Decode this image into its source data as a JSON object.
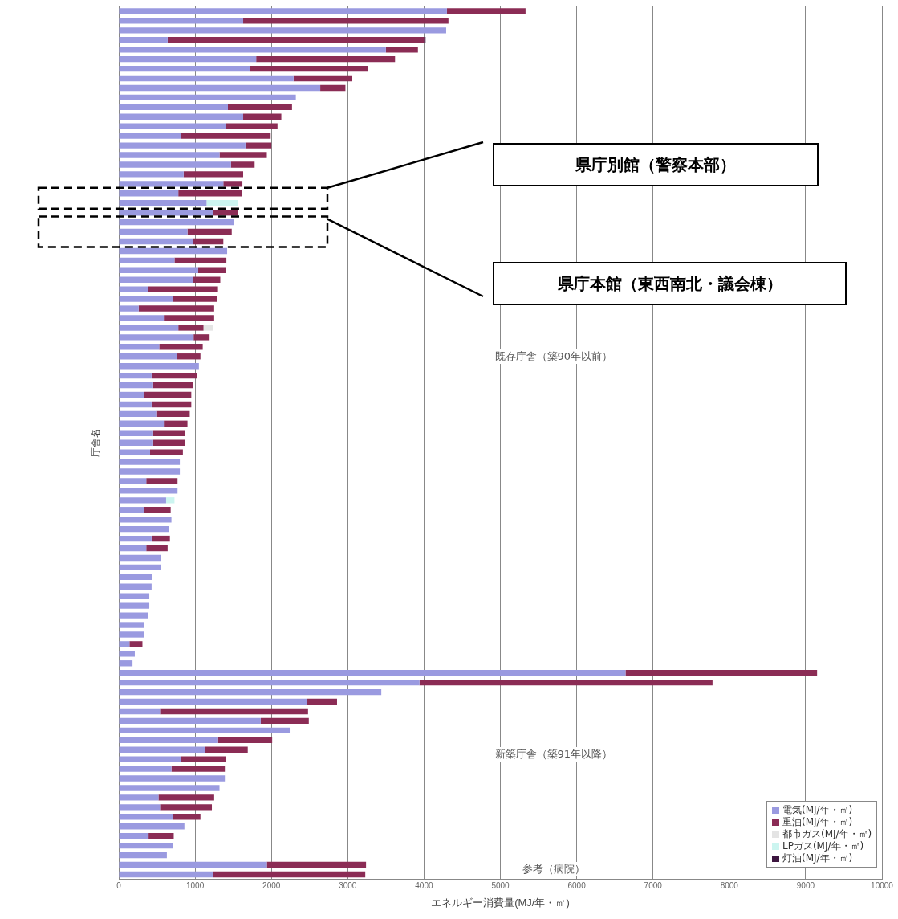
{
  "chart_data": {
    "type": "bar",
    "orientation": "horizontal",
    "stacked": true,
    "xlabel": "エネルギー消費量(MJ/年・㎡)",
    "ylabel": "庁舎名",
    "categories": [
      null,
      null,
      null,
      null,
      null,
      null,
      null,
      null,
      null,
      null,
      null,
      null,
      null,
      null,
      null,
      null,
      null,
      null,
      null,
      null,
      null,
      null,
      null,
      null,
      null,
      null,
      null,
      null,
      null,
      null,
      null,
      null,
      null,
      null,
      null,
      null,
      null,
      null,
      null,
      null,
      null,
      null,
      null,
      null,
      null,
      null,
      null,
      null,
      null,
      null,
      null,
      null,
      null,
      null,
      null,
      null,
      null,
      null,
      null,
      null,
      null,
      null,
      null,
      null,
      null,
      null,
      null,
      null,
      null,
      null,
      null,
      null,
      null,
      null,
      null,
      null,
      null,
      null,
      null,
      null,
      null,
      null,
      null,
      null,
      null,
      null,
      null,
      null,
      null,
      null,
      null
    ],
    "series": [
      {
        "name": "電気(MJ/年・㎡)",
        "color": "#9a9ae0",
        "values": [
          4300,
          1630,
          4290,
          640,
          3500,
          1800,
          1720,
          2290,
          2640,
          2320,
          1430,
          1630,
          1400,
          820,
          1660,
          1320,
          1470,
          850,
          1370,
          780,
          1150,
          1240,
          1510,
          900,
          970,
          1420,
          730,
          1040,
          970,
          380,
          710,
          260,
          590,
          780,
          980,
          530,
          760,
          1050,
          430,
          450,
          330,
          430,
          500,
          590,
          450,
          450,
          410,
          800,
          800,
          360,
          770,
          620,
          330,
          690,
          660,
          430,
          360,
          550,
          550,
          440,
          430,
          400,
          400,
          380,
          330,
          330,
          140,
          210,
          180,
          6640,
          3940,
          3440,
          2470,
          540,
          1860,
          2240,
          1300,
          1130,
          810,
          690,
          1390,
          1320,
          520,
          540,
          710,
          860,
          390,
          710,
          630,
          1940,
          1230
        ]
      },
      {
        "name": "重油(MJ/年・㎡)",
        "color": "#8b2c55",
        "values": [
          1030,
          2690,
          null,
          3360,
          420,
          1820,
          1540,
          770,
          330,
          null,
          840,
          500,
          680,
          1170,
          340,
          620,
          310,
          780,
          250,
          830,
          null,
          320,
          null,
          580,
          400,
          null,
          680,
          360,
          360,
          920,
          580,
          990,
          660,
          330,
          210,
          570,
          310,
          null,
          590,
          520,
          620,
          520,
          430,
          310,
          420,
          420,
          430,
          null,
          null,
          410,
          null,
          null,
          350,
          null,
          null,
          240,
          280,
          null,
          null,
          null,
          null,
          null,
          null,
          null,
          null,
          null,
          170,
          null,
          null,
          2510,
          3840,
          null,
          390,
          1940,
          630,
          null,
          710,
          560,
          590,
          700,
          null,
          null,
          730,
          680,
          360,
          null,
          330,
          null,
          null,
          1300,
          2000
        ]
      },
      {
        "name": "都市ガス(MJ/年・㎡)",
        "color": "#e4e4e4",
        "values": [
          null,
          null,
          null,
          null,
          null,
          null,
          null,
          null,
          null,
          null,
          null,
          null,
          null,
          null,
          null,
          null,
          null,
          null,
          null,
          null,
          null,
          null,
          null,
          null,
          null,
          null,
          null,
          null,
          null,
          null,
          null,
          null,
          null,
          120,
          null,
          null,
          null,
          null,
          null,
          null,
          null,
          null,
          null,
          null,
          null,
          null,
          null,
          null,
          null,
          null,
          null,
          null,
          null,
          null,
          null,
          null,
          null,
          null,
          null,
          null,
          null,
          null,
          null,
          null,
          null,
          null,
          null,
          null,
          null,
          null,
          null,
          null,
          null,
          null,
          null,
          null,
          null,
          null,
          null,
          null,
          null,
          null,
          null,
          null,
          null,
          null,
          null,
          null,
          null,
          null,
          null
        ]
      },
      {
        "name": "LPガス(MJ/年・㎡)",
        "color": "#ccf5f0",
        "values": [
          null,
          null,
          null,
          null,
          null,
          null,
          null,
          null,
          null,
          null,
          null,
          null,
          null,
          null,
          null,
          null,
          null,
          null,
          null,
          null,
          410,
          null,
          null,
          null,
          null,
          null,
          null,
          null,
          null,
          null,
          null,
          null,
          null,
          null,
          null,
          null,
          null,
          null,
          null,
          null,
          null,
          null,
          null,
          null,
          null,
          null,
          null,
          null,
          null,
          null,
          null,
          110,
          null,
          null,
          null,
          null,
          null,
          null,
          null,
          null,
          null,
          null,
          null,
          null,
          null,
          null,
          null,
          null,
          null,
          null,
          null,
          null,
          null,
          null,
          null,
          null,
          null,
          null,
          null,
          null,
          null,
          null,
          null,
          null,
          null,
          null,
          null,
          null,
          null,
          null,
          null
        ]
      },
      {
        "name": "灯油(MJ/年・㎡)",
        "color": "#3d1640",
        "values": [
          null,
          null,
          null,
          20,
          null,
          null,
          null,
          null,
          null,
          null,
          null,
          null,
          null,
          null,
          null,
          null,
          null,
          null,
          null,
          null,
          null,
          null,
          null,
          null,
          null,
          null,
          null,
          null,
          null,
          null,
          null,
          null,
          null,
          null,
          null,
          null,
          null,
          null,
          null,
          null,
          null,
          null,
          null,
          null,
          null,
          null,
          null,
          null,
          null,
          null,
          null,
          null,
          null,
          null,
          null,
          null,
          null,
          null,
          null,
          null,
          null,
          null,
          null,
          null,
          null,
          null,
          null,
          null,
          null,
          null,
          null,
          null,
          null,
          null,
          null,
          null,
          null,
          null,
          null,
          null,
          null,
          null,
          null,
          null,
          null,
          null,
          null,
          null,
          null,
          null,
          null
        ]
      }
    ],
    "xlim": [
      0,
      10000
    ],
    "xticks": [
      0,
      1000,
      2000,
      3000,
      4000,
      5000,
      6000,
      7000,
      8000,
      9000,
      10000
    ],
    "grid": "x",
    "legend": "bottom right",
    "annotations": [
      "県庁別館（警察本部）",
      "県庁本館（東西南北・議会棟）",
      "既存庁舎（築90年以前）",
      "新築庁舎（築91年以降）",
      "参考（病院）"
    ]
  }
}
